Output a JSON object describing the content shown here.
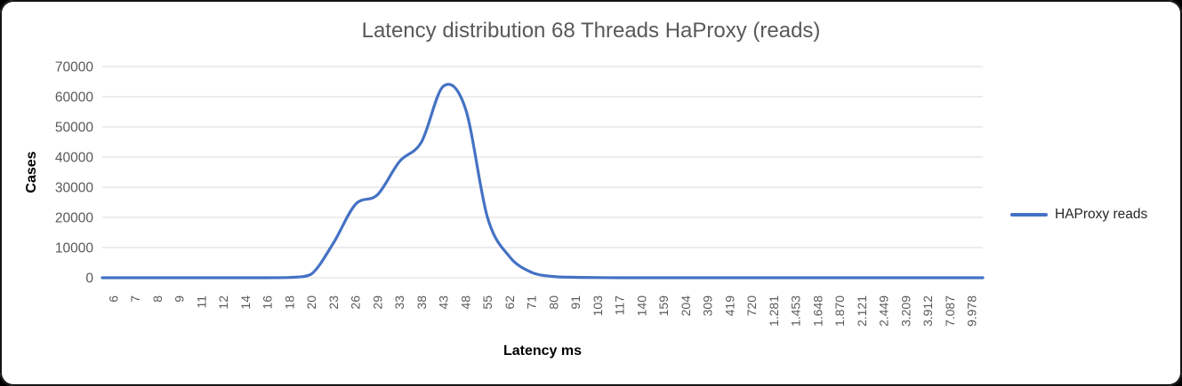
{
  "window": {
    "background": "#000000",
    "card_background": "#ffffff"
  },
  "chart_data": {
    "type": "line",
    "title": "Latency distribution 68 Threads HaProxy (reads)",
    "xlabel": "Latency ms",
    "ylabel": "Cases",
    "categories": [
      "6",
      "7",
      "8",
      "9",
      "11",
      "12",
      "14",
      "16",
      "18",
      "20",
      "23",
      "26",
      "29",
      "33",
      "38",
      "43",
      "48",
      "55",
      "62",
      "71",
      "80",
      "91",
      "103",
      "117",
      "140",
      "159",
      "204",
      "309",
      "419",
      "720",
      "1.281",
      "1.453",
      "1.648",
      "1.870",
      "2.121",
      "2.449",
      "3.209",
      "3.912",
      "7.087",
      "9.978"
    ],
    "series": [
      {
        "name": "HAProxy reads",
        "color": "#4472C4",
        "values": [
          0,
          0,
          0,
          0,
          0,
          0,
          0,
          0,
          100,
          1200,
          11500,
          24300,
          27500,
          38500,
          45000,
          63500,
          56000,
          20000,
          7000,
          1800,
          400,
          150,
          50,
          0,
          0,
          0,
          0,
          0,
          0,
          0,
          0,
          0,
          0,
          0,
          0,
          0,
          0,
          0,
          0,
          0
        ]
      }
    ],
    "ylim": [
      0,
      70000
    ],
    "yticks": [
      0,
      10000,
      20000,
      30000,
      40000,
      50000,
      60000,
      70000
    ],
    "grid": true,
    "smooth": true,
    "legend": {
      "position": "right-middle",
      "entries": [
        "HAProxy reads"
      ]
    }
  },
  "styles": {
    "title_color": "#595959",
    "tick_color": "#595959",
    "grid_color": "#D9D9D9",
    "axis_title_color": "#000000",
    "legend_text_color": "#262626",
    "line_color": "#4472C4"
  }
}
